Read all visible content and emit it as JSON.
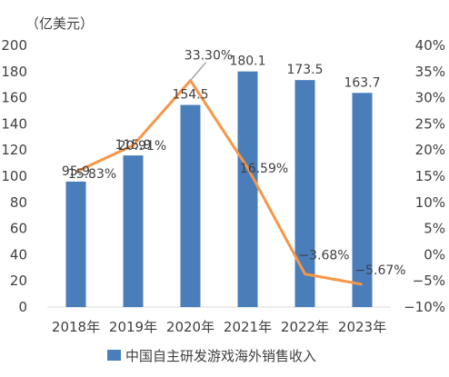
{
  "chart_data": {
    "type": "bar",
    "title": "",
    "unit_label": "（亿美元）",
    "categories": [
      "2018年",
      "2019年",
      "2020年",
      "2021年",
      "2022年",
      "2023年"
    ],
    "series": [
      {
        "name": "中国自主研发游戏海外销售收入",
        "kind": "bar",
        "axis": "left",
        "values": [
          95.9,
          115.9,
          154.5,
          180.1,
          173.5,
          163.7
        ],
        "labels": [
          "95.9",
          "115.9",
          "154.5",
          "180.1",
          "173.5",
          "163.7"
        ],
        "color": "#4a7ebb"
      },
      {
        "kind": "line",
        "axis": "right",
        "values": [
          15.83,
          20.91,
          33.3,
          16.59,
          -3.68,
          -5.67
        ],
        "labels": [
          "15.83%",
          "20.91%",
          "33.30%",
          "16.59%",
          "−3.68%",
          "−5.67%"
        ],
        "color": "#f79646"
      }
    ],
    "y_left": {
      "min": 0,
      "max": 200,
      "step": 20,
      "tick_labels": [
        "0",
        "20",
        "40",
        "60",
        "80",
        "100",
        "120",
        "140",
        "160",
        "180",
        "200"
      ]
    },
    "y_right": {
      "min": -10,
      "max": 40,
      "step": 5,
      "tick_labels": [
        "−10%",
        "−5%",
        "0%",
        "5%",
        "10%",
        "15%",
        "20%",
        "25%",
        "30%",
        "35%",
        "40%"
      ]
    },
    "grid": false,
    "legend_position": "bottom"
  }
}
